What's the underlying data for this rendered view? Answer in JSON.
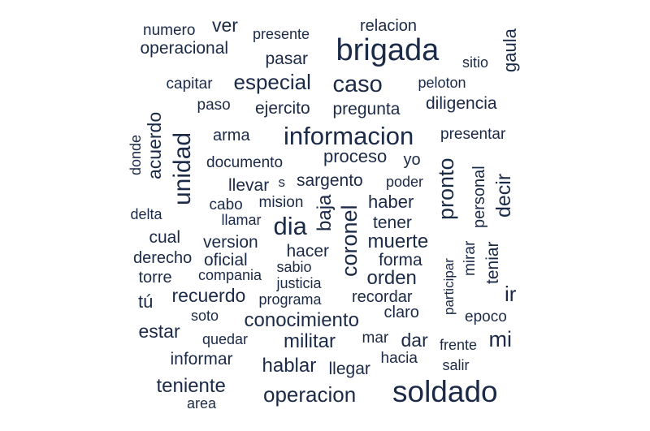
{
  "colors": {
    "word": "#1b2a47",
    "background": "#ffffff"
  },
  "words": [
    "numero",
    "ver",
    "presente",
    "relacion",
    "operacional",
    "brigada",
    "pasar",
    "sitio",
    "gaula",
    "capitar",
    "especial",
    "caso",
    "peloton",
    "paso",
    "ejercito",
    "pregunta",
    "diligencia",
    "acuerdo",
    "informacion",
    "presentar",
    "donde",
    "arma",
    "unidad",
    "documento",
    "proceso",
    "yo",
    "pronto",
    "personal",
    "decir",
    "llevar",
    "s",
    "sargento",
    "poder",
    "cabo",
    "mision",
    "baja",
    "haber",
    "delta",
    "llamar",
    "dia",
    "tener",
    "coronel",
    "cual",
    "version",
    "muerte",
    "hacer",
    "derecho",
    "oficial",
    "forma",
    "mirar",
    "teniar",
    "participar",
    "torre",
    "compania",
    "sabio",
    "orden",
    "justicia",
    "ir",
    "recuerdo",
    "programa",
    "recordar",
    "tú",
    "claro",
    "soto",
    "epoco",
    "conocimiento",
    "estar",
    "quedar",
    "mar",
    "dar",
    "mi",
    "militar",
    "frente",
    "informar",
    "hacia",
    "hablar",
    "salir",
    "llegar",
    "teniente",
    "soldado",
    "operacion",
    "area"
  ]
}
